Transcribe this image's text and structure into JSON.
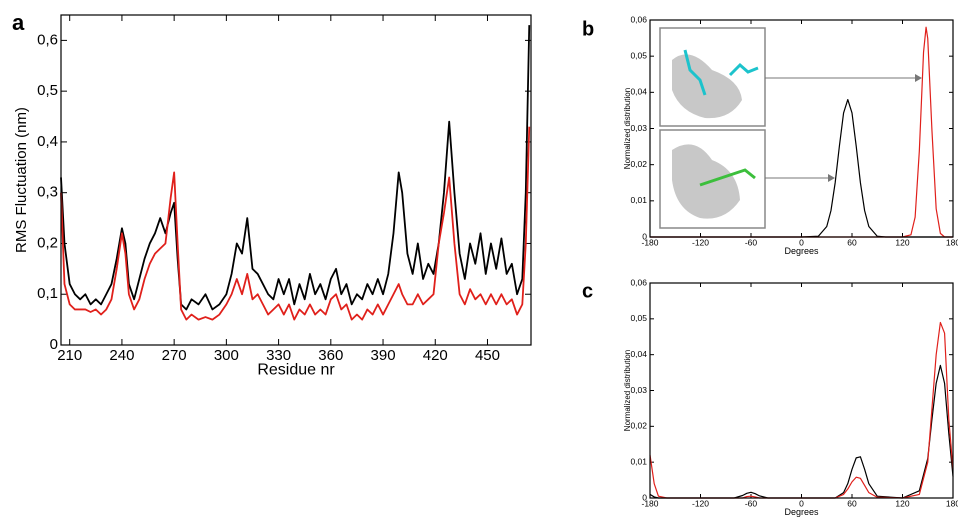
{
  "chart_data": [
    {
      "type": "line",
      "panel": "a",
      "xlabel": "Residue nr",
      "ylabel": "RMS Fluctuation (nm)",
      "xlim": [
        205,
        475
      ],
      "ylim": [
        0,
        0.65
      ],
      "xticks": [
        210,
        240,
        270,
        300,
        330,
        360,
        390,
        420,
        450
      ],
      "yticks": [
        0,
        {
          "value": 0.1,
          "label": "0,1"
        },
        {
          "value": 0.2,
          "label": "0,2"
        },
        {
          "value": 0.3,
          "label": "0,3"
        },
        {
          "value": 0.4,
          "label": "0,4"
        },
        {
          "value": 0.5,
          "label": "0,5"
        },
        {
          "value": 0.6,
          "label": "0,6"
        }
      ],
      "x": [
        205,
        207,
        210,
        213,
        216,
        219,
        222,
        225,
        228,
        231,
        234,
        237,
        240,
        242,
        244,
        247,
        250,
        253,
        256,
        259,
        262,
        265,
        268,
        270,
        272,
        274,
        277,
        280,
        284,
        288,
        292,
        296,
        300,
        303,
        306,
        309,
        312,
        315,
        318,
        321,
        324,
        327,
        330,
        333,
        336,
        339,
        342,
        345,
        348,
        351,
        354,
        357,
        360,
        363,
        366,
        369,
        372,
        375,
        378,
        381,
        384,
        387,
        390,
        393,
        396,
        399,
        401,
        404,
        407,
        410,
        413,
        416,
        419,
        422,
        425,
        428,
        431,
        434,
        437,
        440,
        443,
        446,
        449,
        452,
        455,
        458,
        461,
        464,
        467,
        470,
        472,
        474
      ],
      "series": [
        {
          "color": "#000000",
          "values": [
            0.33,
            0.2,
            0.12,
            0.1,
            0.09,
            0.1,
            0.08,
            0.09,
            0.08,
            0.1,
            0.12,
            0.17,
            0.23,
            0.2,
            0.12,
            0.09,
            0.13,
            0.17,
            0.2,
            0.22,
            0.25,
            0.22,
            0.26,
            0.28,
            0.17,
            0.08,
            0.07,
            0.09,
            0.08,
            0.1,
            0.07,
            0.08,
            0.1,
            0.14,
            0.2,
            0.18,
            0.25,
            0.15,
            0.14,
            0.12,
            0.1,
            0.09,
            0.13,
            0.1,
            0.13,
            0.08,
            0.12,
            0.09,
            0.14,
            0.1,
            0.12,
            0.09,
            0.13,
            0.15,
            0.1,
            0.12,
            0.08,
            0.1,
            0.09,
            0.12,
            0.1,
            0.13,
            0.1,
            0.14,
            0.22,
            0.34,
            0.3,
            0.18,
            0.14,
            0.2,
            0.13,
            0.16,
            0.14,
            0.2,
            0.3,
            0.44,
            0.3,
            0.18,
            0.13,
            0.2,
            0.16,
            0.22,
            0.14,
            0.2,
            0.15,
            0.21,
            0.14,
            0.16,
            0.1,
            0.13,
            0.3,
            0.63
          ]
        },
        {
          "color": "#e0201b",
          "values": [
            0.3,
            0.12,
            0.08,
            0.07,
            0.07,
            0.07,
            0.065,
            0.07,
            0.06,
            0.07,
            0.09,
            0.15,
            0.22,
            0.18,
            0.1,
            0.07,
            0.09,
            0.13,
            0.16,
            0.18,
            0.19,
            0.2,
            0.29,
            0.34,
            0.2,
            0.07,
            0.05,
            0.06,
            0.05,
            0.055,
            0.05,
            0.06,
            0.08,
            0.1,
            0.13,
            0.1,
            0.14,
            0.09,
            0.1,
            0.08,
            0.06,
            0.07,
            0.08,
            0.06,
            0.08,
            0.05,
            0.07,
            0.06,
            0.08,
            0.06,
            0.07,
            0.06,
            0.09,
            0.1,
            0.07,
            0.08,
            0.05,
            0.06,
            0.05,
            0.07,
            0.06,
            0.08,
            0.06,
            0.08,
            0.1,
            0.12,
            0.1,
            0.08,
            0.08,
            0.1,
            0.08,
            0.09,
            0.1,
            0.2,
            0.26,
            0.33,
            0.2,
            0.1,
            0.08,
            0.11,
            0.09,
            0.1,
            0.08,
            0.1,
            0.08,
            0.1,
            0.08,
            0.09,
            0.06,
            0.08,
            0.2,
            0.43
          ]
        }
      ]
    },
    {
      "type": "line",
      "panel": "b",
      "xlabel": "Degrees",
      "ylabel": "Normalized distribution",
      "xlim": [
        -180,
        180
      ],
      "ylim": [
        0,
        0.06
      ],
      "xticks": [
        -180,
        -120,
        -60,
        0,
        60,
        120,
        180
      ],
      "yticks": [
        0,
        {
          "value": 0.01,
          "label": "0,01"
        },
        {
          "value": 0.02,
          "label": "0,02"
        },
        {
          "value": 0.03,
          "label": "0,03"
        },
        {
          "value": 0.04,
          "label": "0,04"
        },
        {
          "value": 0.05,
          "label": "0,05"
        },
        {
          "value": 0.06,
          "label": "0,06"
        }
      ],
      "x": [
        -180,
        -120,
        -60,
        0,
        20,
        30,
        35,
        40,
        45,
        50,
        55,
        60,
        65,
        70,
        75,
        80,
        90,
        100,
        120,
        130,
        135,
        140,
        145,
        148,
        150,
        155,
        160,
        165,
        170,
        180
      ],
      "series": [
        {
          "color": "#000000",
          "values": [
            0,
            0,
            0,
            0,
            0.0002,
            0.0029,
            0.0073,
            0.015,
            0.0251,
            0.0343,
            0.038,
            0.0343,
            0.0251,
            0.015,
            0.0073,
            0.0029,
            0.0002,
            0,
            0,
            0,
            0,
            0,
            0,
            0,
            0,
            0,
            0,
            0,
            0,
            0
          ]
        },
        {
          "color": "#e0201b",
          "values": [
            0,
            0,
            0,
            0,
            0,
            0,
            0,
            0,
            0,
            0,
            0,
            0,
            0,
            0,
            0,
            0,
            0,
            0,
            0,
            0.0006,
            0.0055,
            0.0238,
            0.0511,
            0.058,
            0.0549,
            0.0294,
            0.0078,
            0.001,
            0,
            0
          ]
        }
      ]
    },
    {
      "type": "line",
      "panel": "c",
      "xlabel": "Degrees",
      "ylabel": "Normalized distribution",
      "xlim": [
        -180,
        180
      ],
      "ylim": [
        0,
        0.06
      ],
      "xticks": [
        -180,
        -120,
        -60,
        0,
        60,
        120,
        180
      ],
      "yticks": [
        0,
        {
          "value": 0.01,
          "label": "0,01"
        },
        {
          "value": 0.02,
          "label": "0,02"
        },
        {
          "value": 0.03,
          "label": "0,03"
        },
        {
          "value": 0.04,
          "label": "0,04"
        },
        {
          "value": 0.05,
          "label": "0,05"
        },
        {
          "value": 0.06,
          "label": "0,06"
        }
      ],
      "x": [
        -180,
        -175,
        -170,
        -160,
        -80,
        -70,
        -65,
        -60,
        -55,
        -50,
        -40,
        40,
        50,
        55,
        60,
        65,
        70,
        75,
        80,
        90,
        120,
        140,
        150,
        155,
        160,
        165,
        170,
        175,
        180
      ],
      "series": [
        {
          "color": "#000000",
          "values": [
            0.001,
            0.0003,
            0,
            0,
            0,
            0.0007,
            0.0013,
            0.0016,
            0.0012,
            0.0006,
            0,
            0,
            0.0015,
            0.004,
            0.008,
            0.0112,
            0.0115,
            0.008,
            0.004,
            0.0005,
            0,
            0.002,
            0.011,
            0.022,
            0.032,
            0.037,
            0.032,
            0.018,
            0.006
          ]
        },
        {
          "color": "#e0201b",
          "values": [
            0.012,
            0.004,
            0.0005,
            0,
            0,
            0,
            0.0004,
            0.0005,
            0.0003,
            0,
            0,
            0,
            0.001,
            0.0025,
            0.0045,
            0.0058,
            0.0055,
            0.0035,
            0.0015,
            0.0002,
            0,
            0.001,
            0.01,
            0.025,
            0.04,
            0.049,
            0.046,
            0.022,
            0.008
          ]
        }
      ]
    }
  ]
}
